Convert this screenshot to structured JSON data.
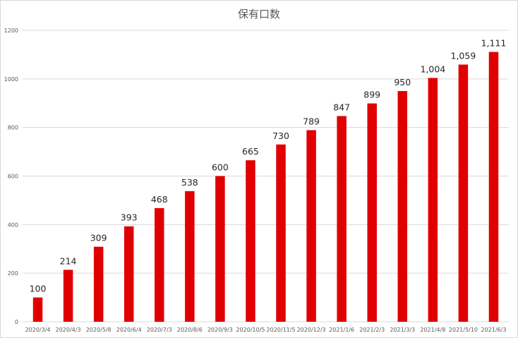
{
  "chart_data": {
    "type": "bar",
    "title": "保有口数",
    "xlabel": "",
    "ylabel": "",
    "categories": [
      "2020/3/4",
      "2020/4/3",
      "2020/5/8",
      "2020/6/4",
      "2020/7/3",
      "2020/8/6",
      "2020/9/3",
      "2020/10/5",
      "2020/11/5",
      "2020/12/3",
      "2021/1/6",
      "2021/2/3",
      "2021/3/3",
      "2021/4/8",
      "2021/5/10",
      "2021/6/3"
    ],
    "values": [
      100,
      214,
      309,
      393,
      468,
      538,
      600,
      665,
      730,
      789,
      847,
      899,
      950,
      1004,
      1059,
      1111
    ],
    "data_labels": [
      "100",
      "214",
      "309",
      "393",
      "468",
      "538",
      "600",
      "665",
      "730",
      "789",
      "847",
      "899",
      "950",
      "1,004",
      "1,059",
      "1,111"
    ],
    "ylim": [
      0,
      1200
    ],
    "yticks": [
      0,
      200,
      400,
      600,
      800,
      1000,
      1200
    ],
    "grid": true,
    "legend": "none",
    "bar_color": "#e00000",
    "grid_color": "#d9d9d9"
  }
}
